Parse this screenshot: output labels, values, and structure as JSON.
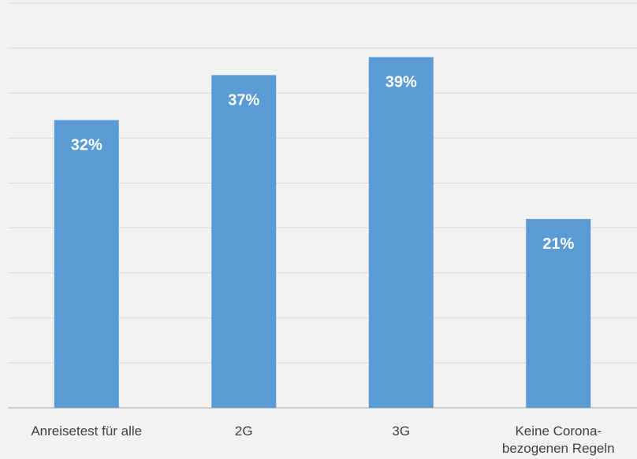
{
  "chart_data": {
    "type": "bar",
    "categories": [
      "Anreisetest für alle",
      "2G",
      "3G",
      "Keine Corona-bezogenen Regeln"
    ],
    "category_lines": [
      [
        "Anreisetest für alle"
      ],
      [
        "2G"
      ],
      [
        "3G"
      ],
      [
        "Keine Corona-",
        "bezogenen Regeln"
      ]
    ],
    "values": [
      32,
      37,
      39,
      21
    ],
    "data_labels": [
      "32%",
      "37%",
      "39%",
      "21%"
    ],
    "ylim": [
      0,
      45
    ],
    "y_gridline_step": 5,
    "grid": true,
    "y_tick_labels_visible": false,
    "legend": "none",
    "colors": {
      "bar": "#5b9bd5",
      "background": "#f2f2f2",
      "gridline": "#d9d9d9",
      "axis": "#bfbfbf",
      "data_label": "#ffffff",
      "category_label": "#404040"
    }
  }
}
